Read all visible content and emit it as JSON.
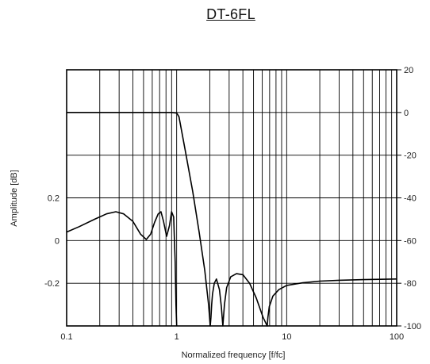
{
  "chart_data": {
    "type": "line",
    "title": "DT-6FL",
    "xlabel": "Normalized frequency [f/fc]",
    "ylabel": "Amplitude [dB]",
    "x_scale": "log",
    "xlim": [
      0.1,
      100
    ],
    "x_ticks": [
      "0.1",
      "1",
      "10",
      "100"
    ],
    "y_left_ticks": [
      "0.2",
      "0",
      "-0.2"
    ],
    "y_left_values": [
      0.2,
      0,
      -0.2
    ],
    "y_right_ticks": [
      "20",
      "0",
      "-20",
      "-40",
      "-60",
      "-80",
      "-100"
    ],
    "y_right_values": [
      20,
      0,
      -20,
      -40,
      -60,
      -80,
      -100
    ],
    "ylim_right": [
      -100,
      20
    ],
    "grid": true,
    "series": [
      {
        "axis": "right",
        "x": [
          0.1,
          0.3,
          0.6,
          0.9,
          1.0,
          1.05,
          1.2,
          1.4,
          1.6,
          1.8,
          1.95,
          2.02,
          2.05,
          2.08,
          2.12,
          2.2,
          2.3,
          2.45,
          2.55,
          2.63,
          2.72,
          2.85,
          3.1,
          3.5,
          4.0,
          4.6,
          5.3,
          6.1,
          6.65,
          6.75,
          6.95,
          7.5,
          8.5,
          10,
          14,
          20,
          30,
          50,
          80,
          100
        ],
        "y": [
          0,
          0,
          0,
          0,
          -0.3,
          -2,
          -18,
          -37,
          -56,
          -74,
          -90,
          -100,
          -96,
          -90,
          -85,
          -80,
          -78,
          -83,
          -91,
          -100,
          -90,
          -82,
          -77,
          -75.5,
          -76,
          -80,
          -87,
          -96,
          -100,
          -96,
          -91,
          -86,
          -83,
          -81,
          -79.8,
          -79,
          -78.6,
          -78.3,
          -78.1,
          -78
        ]
      },
      {
        "axis": "left",
        "x": [
          0.1,
          0.13,
          0.18,
          0.23,
          0.28,
          0.33,
          0.4,
          0.47,
          0.53,
          0.58,
          0.63,
          0.68,
          0.72,
          0.76,
          0.81,
          0.86,
          0.9,
          0.94,
          0.97,
          0.985,
          1.0
        ],
        "y": [
          0.04,
          0.065,
          0.1,
          0.125,
          0.135,
          0.125,
          0.09,
          0.03,
          0.005,
          0.03,
          0.085,
          0.125,
          0.135,
          0.09,
          0.02,
          0.07,
          0.135,
          0.11,
          -0.1,
          -0.3,
          -0.5
        ]
      }
    ]
  }
}
